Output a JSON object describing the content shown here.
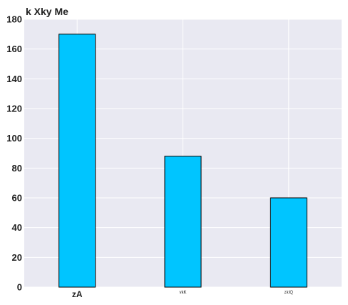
{
  "chart_data": {
    "type": "bar",
    "title": "k Xky Me",
    "xlabel": "",
    "ylabel": "",
    "categories": [
      "zA",
      "vkK",
      "zkIQ"
    ],
    "values": [
      170,
      88,
      60
    ],
    "ylim": [
      0,
      180
    ],
    "yticks": [
      0,
      20,
      40,
      60,
      80,
      100,
      120,
      140,
      160,
      180
    ],
    "grid": true,
    "legend": "none",
    "colors": {
      "bar_fill": "#00c5ff",
      "bar_edge": "#000000",
      "plot_background": "#e9e9f2",
      "grid": "#ffffff",
      "text": "#222222"
    }
  }
}
